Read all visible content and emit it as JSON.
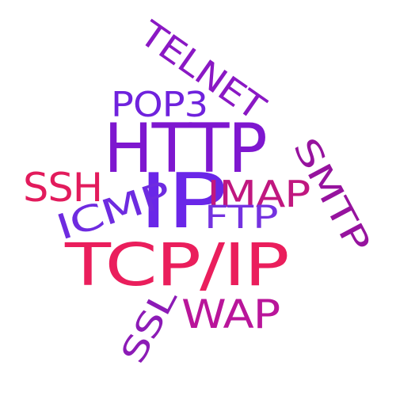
{
  "words": [
    {
      "text": "TELNET",
      "color": "#8a18c4"
    },
    {
      "text": "POP3",
      "color": "#6f22dd"
    },
    {
      "text": "HTTP",
      "color": "#7e17cf"
    },
    {
      "text": "SSH",
      "color": "#e21b5c"
    },
    {
      "text": "IP",
      "color": "#6a26e8"
    },
    {
      "text": "IMAP",
      "color": "#c0177f"
    },
    {
      "text": "SMTP",
      "color": "#96139e"
    },
    {
      "text": "ICMP",
      "color": "#6e2be0"
    },
    {
      "text": "FTP",
      "color": "#7432e0"
    },
    {
      "text": "TCP/IP",
      "color": "#ea1e5c"
    },
    {
      "text": "WAP",
      "color": "#b9159a"
    },
    {
      "text": "SSL",
      "color": "#8c1bb6"
    }
  ]
}
